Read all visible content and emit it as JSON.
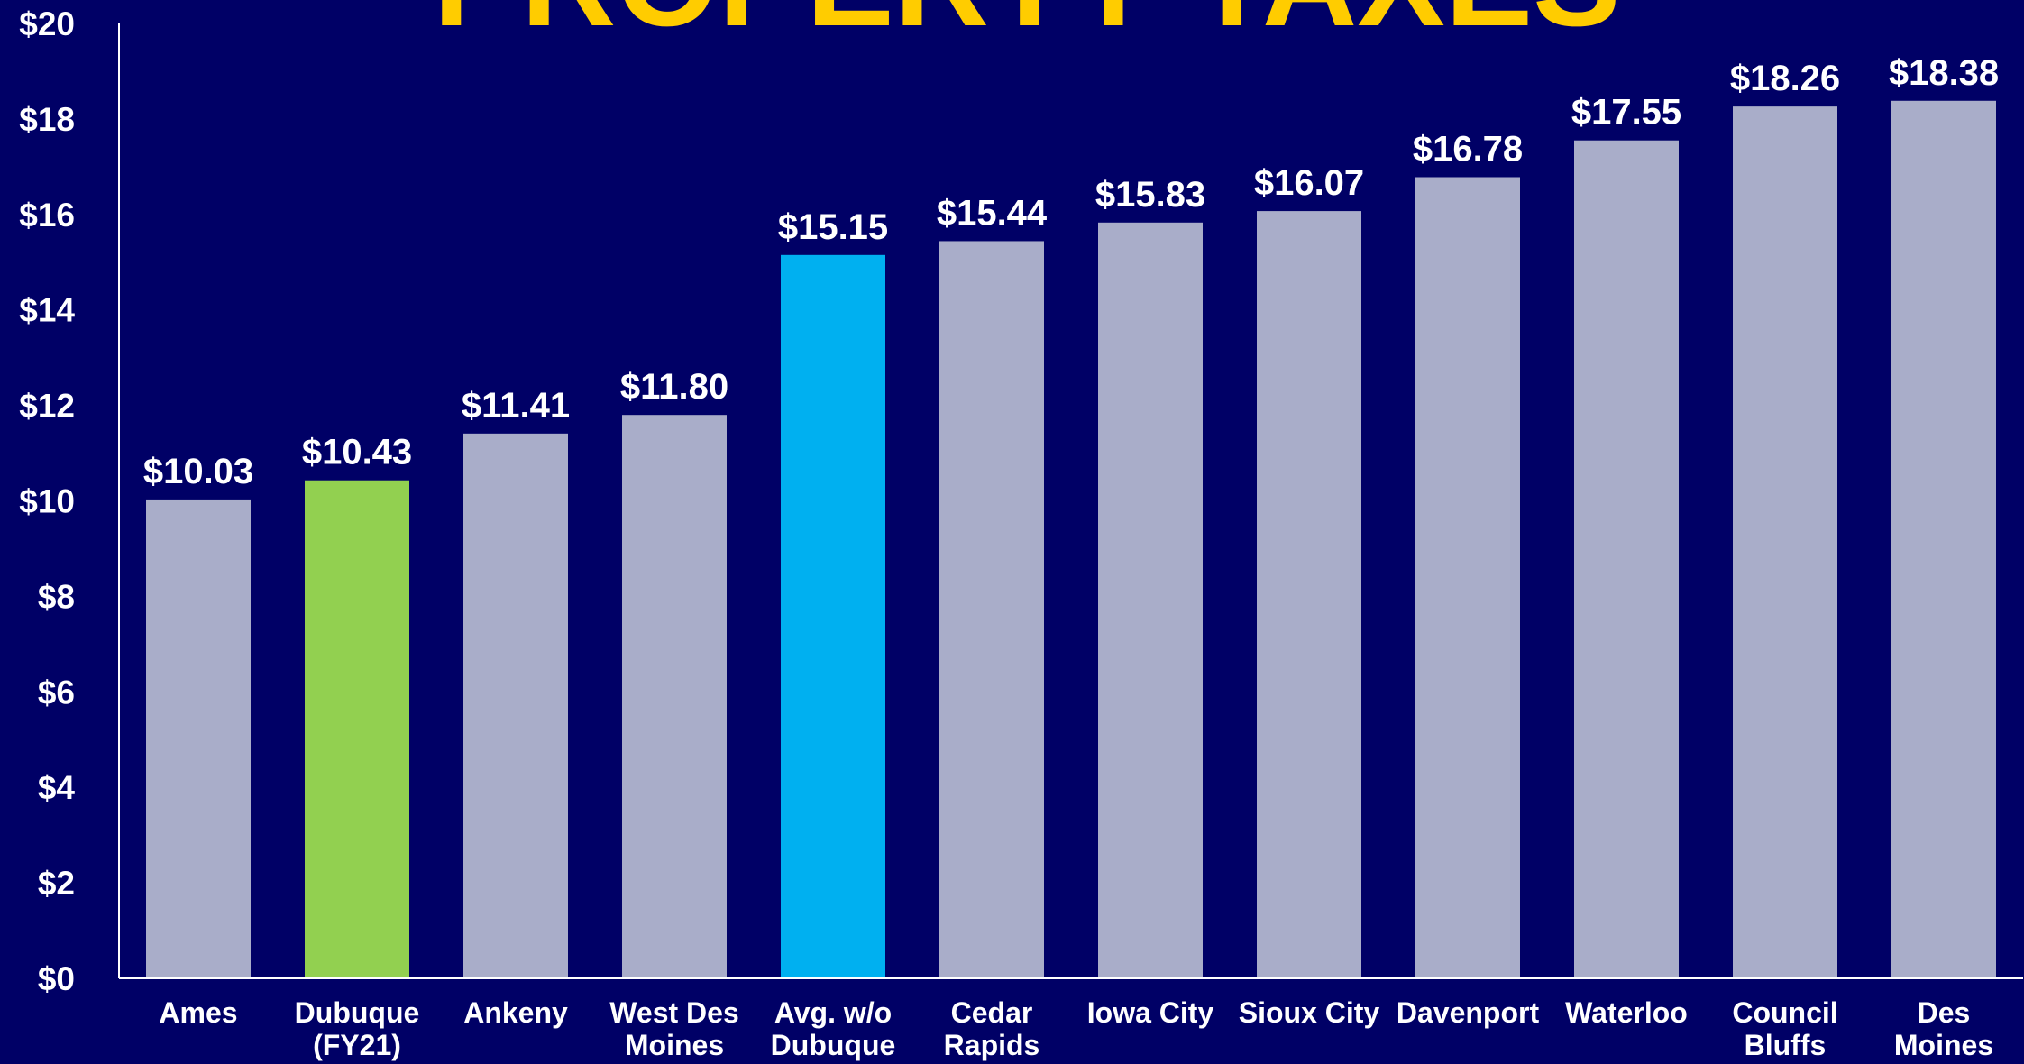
{
  "chart_data": {
    "type": "bar",
    "title": "PROPERTY TAXES",
    "categories": [
      "Ames",
      "Dubuque\n(FY21)",
      "Ankeny",
      "West Des\nMoines",
      "Avg. w/o\nDubuque",
      "Cedar\nRapids",
      "Iowa City",
      "Sioux City",
      "Davenport",
      "Waterloo",
      "Council\nBluffs",
      "Des\nMoines"
    ],
    "values": [
      10.03,
      10.43,
      11.41,
      11.8,
      15.15,
      15.44,
      15.83,
      16.07,
      16.78,
      17.55,
      18.26,
      18.38
    ],
    "value_labels": [
      "$10.03",
      "$10.43",
      "$11.41",
      "$11.80",
      "$15.15",
      "$15.44",
      "$15.83",
      "$16.07",
      "$16.78",
      "$17.55",
      "$18.26",
      "$18.38"
    ],
    "colors": [
      "#a9adc9",
      "#92d050",
      "#a9adc9",
      "#a9adc9",
      "#00b0f0",
      "#a9adc9",
      "#a9adc9",
      "#a9adc9",
      "#a9adc9",
      "#a9adc9",
      "#a9adc9",
      "#a9adc9"
    ],
    "ylim": [
      0,
      20
    ],
    "yticks": [
      {
        "value": 0,
        "label": "$0"
      },
      {
        "value": 2,
        "label": "$2"
      },
      {
        "value": 4,
        "label": "$4"
      },
      {
        "value": 6,
        "label": "$6"
      },
      {
        "value": 8,
        "label": "$8"
      },
      {
        "value": 10,
        "label": "$10"
      },
      {
        "value": 12,
        "label": "$12"
      },
      {
        "value": 14,
        "label": "$14"
      },
      {
        "value": 16,
        "label": "$16"
      },
      {
        "value": 18,
        "label": "$18"
      },
      {
        "value": 20,
        "label": "$20"
      }
    ],
    "grid": false
  }
}
